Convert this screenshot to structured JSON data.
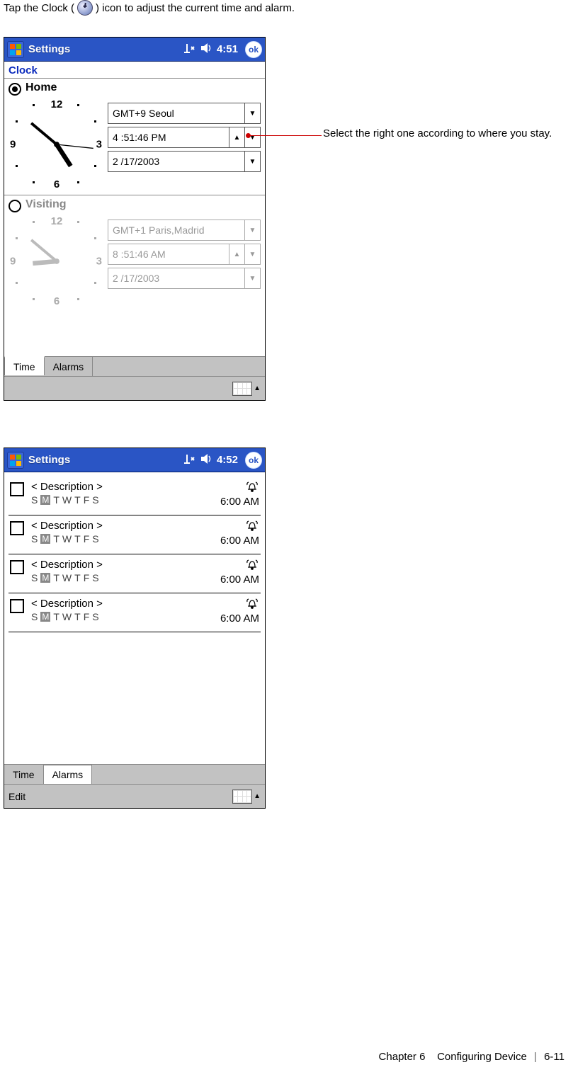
{
  "intro": {
    "before": "Tap the Clock (",
    "after": ") icon to adjust the current time and alarm."
  },
  "callout": "Select the right one according to where you stay.",
  "shot1": {
    "titlebar": {
      "title": "Settings",
      "time": "4:51",
      "ok": "ok"
    },
    "subheader": "Clock",
    "home": {
      "label": "Home",
      "tz": "GMT+9 Seoul",
      "time": "4 :51:46 PM",
      "date": "2 /17/2003",
      "numbers": {
        "n12": "12",
        "n3": "3",
        "n6": "6",
        "n9": "9"
      }
    },
    "visiting": {
      "label": "Visiting",
      "tz": "GMT+1 Paris,Madrid",
      "time": "8 :51:46 AM",
      "date": "2 /17/2003",
      "numbers": {
        "n12": "12",
        "n3": "3",
        "n6": "6",
        "n9": "9"
      }
    },
    "tabs": {
      "time": "Time",
      "alarms": "Alarms"
    }
  },
  "shot2": {
    "titlebar": {
      "title": "Settings",
      "time": "4:52",
      "ok": "ok"
    },
    "alarms": [
      {
        "desc": "< Description >",
        "days": [
          "S",
          "M",
          "T",
          "W",
          "T",
          "F",
          "S"
        ],
        "time": "6:00 AM"
      },
      {
        "desc": "< Description >",
        "days": [
          "S",
          "M",
          "T",
          "W",
          "T",
          "F",
          "S"
        ],
        "time": "6:00 AM"
      },
      {
        "desc": "< Description >",
        "days": [
          "S",
          "M",
          "T",
          "W",
          "T",
          "F",
          "S"
        ],
        "time": "6:00 AM"
      },
      {
        "desc": "< Description >",
        "days": [
          "S",
          "M",
          "T",
          "W",
          "T",
          "F",
          "S"
        ],
        "time": "6:00 AM"
      }
    ],
    "tabs": {
      "time": "Time",
      "alarms": "Alarms"
    },
    "edit": "Edit"
  },
  "footer": {
    "chapter": "Chapter 6",
    "title": "Configuring Device",
    "page": "6-11"
  }
}
